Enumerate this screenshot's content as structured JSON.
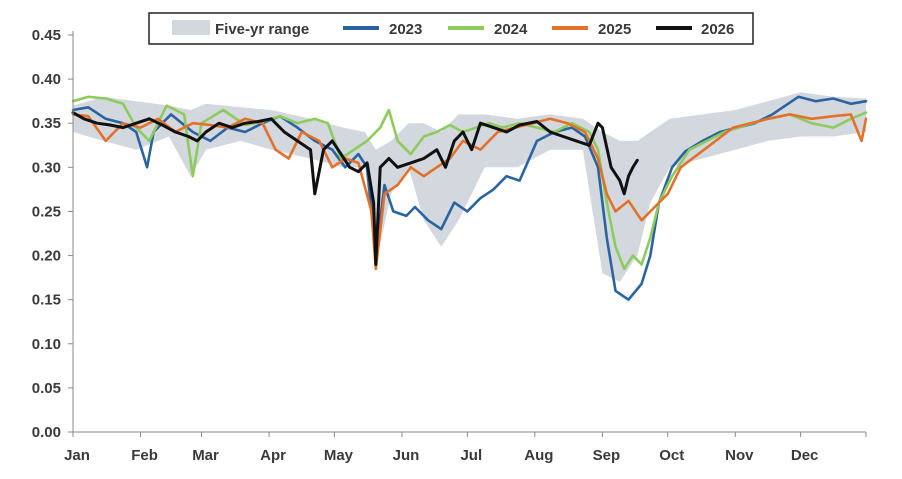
{
  "chart_data": {
    "type": "line",
    "title": "",
    "xlabel": "",
    "ylabel": "",
    "ylim": [
      0,
      0.45
    ],
    "yticks": [
      "0.00",
      "0.05",
      "0.10",
      "0.15",
      "0.20",
      "0.25",
      "0.30",
      "0.35",
      "0.40",
      "0.45"
    ],
    "x_tick_labels": [
      "Jan",
      "Feb",
      "Mar",
      "Apr",
      "May",
      "Jun",
      "Jul",
      "Aug",
      "Sep",
      "Oct",
      "Nov",
      "Dec"
    ],
    "grid": "none",
    "legend_position": "top",
    "range": {
      "name": "Five-yr range",
      "color": "#d3d7de",
      "points": [
        {
          "day": 1,
          "low": 0.34,
          "high": 0.37
        },
        {
          "day": 15,
          "low": 0.33,
          "high": 0.38
        },
        {
          "day": 30,
          "low": 0.32,
          "high": 0.375
        },
        {
          "day": 45,
          "low": 0.335,
          "high": 0.37
        },
        {
          "day": 55,
          "low": 0.29,
          "high": 0.365
        },
        {
          "day": 62,
          "low": 0.32,
          "high": 0.372
        },
        {
          "day": 78,
          "low": 0.33,
          "high": 0.368
        },
        {
          "day": 92,
          "low": 0.32,
          "high": 0.365
        },
        {
          "day": 110,
          "low": 0.31,
          "high": 0.355
        },
        {
          "day": 125,
          "low": 0.3,
          "high": 0.345
        },
        {
          "day": 135,
          "low": 0.3,
          "high": 0.34
        },
        {
          "day": 140,
          "low": 0.19,
          "high": 0.32
        },
        {
          "day": 147,
          "low": 0.27,
          "high": 0.33
        },
        {
          "day": 155,
          "low": 0.3,
          "high": 0.35
        },
        {
          "day": 162,
          "low": 0.24,
          "high": 0.35
        },
        {
          "day": 170,
          "low": 0.21,
          "high": 0.34
        },
        {
          "day": 178,
          "low": 0.24,
          "high": 0.36
        },
        {
          "day": 190,
          "low": 0.3,
          "high": 0.36
        },
        {
          "day": 205,
          "low": 0.3,
          "high": 0.355
        },
        {
          "day": 220,
          "low": 0.32,
          "high": 0.36
        },
        {
          "day": 235,
          "low": 0.32,
          "high": 0.355
        },
        {
          "day": 244,
          "low": 0.18,
          "high": 0.34
        },
        {
          "day": 252,
          "low": 0.17,
          "high": 0.33
        },
        {
          "day": 260,
          "low": 0.2,
          "high": 0.33
        },
        {
          "day": 266,
          "low": 0.26,
          "high": 0.34
        },
        {
          "day": 275,
          "low": 0.3,
          "high": 0.355
        },
        {
          "day": 290,
          "low": 0.31,
          "high": 0.36
        },
        {
          "day": 305,
          "low": 0.32,
          "high": 0.365
        },
        {
          "day": 320,
          "low": 0.33,
          "high": 0.375
        },
        {
          "day": 335,
          "low": 0.335,
          "high": 0.385
        },
        {
          "day": 350,
          "low": 0.335,
          "high": 0.38
        },
        {
          "day": 365,
          "low": 0.34,
          "high": 0.378
        }
      ]
    },
    "series": [
      {
        "name": "2023",
        "color": "#2a64a0",
        "points": [
          [
            1,
            0.365
          ],
          [
            8,
            0.368
          ],
          [
            16,
            0.355
          ],
          [
            24,
            0.35
          ],
          [
            30,
            0.34
          ],
          [
            35,
            0.3
          ],
          [
            38,
            0.34
          ],
          [
            46,
            0.36
          ],
          [
            56,
            0.34
          ],
          [
            64,
            0.33
          ],
          [
            72,
            0.345
          ],
          [
            80,
            0.34
          ],
          [
            88,
            0.35
          ],
          [
            96,
            0.358
          ],
          [
            104,
            0.345
          ],
          [
            112,
            0.33
          ],
          [
            120,
            0.32
          ],
          [
            126,
            0.3
          ],
          [
            132,
            0.315
          ],
          [
            136,
            0.3
          ],
          [
            140,
            0.2
          ],
          [
            144,
            0.28
          ],
          [
            148,
            0.25
          ],
          [
            154,
            0.245
          ],
          [
            158,
            0.255
          ],
          [
            164,
            0.24
          ],
          [
            170,
            0.23
          ],
          [
            176,
            0.26
          ],
          [
            182,
            0.25
          ],
          [
            188,
            0.265
          ],
          [
            194,
            0.275
          ],
          [
            200,
            0.29
          ],
          [
            206,
            0.285
          ],
          [
            214,
            0.33
          ],
          [
            222,
            0.34
          ],
          [
            230,
            0.345
          ],
          [
            236,
            0.335
          ],
          [
            242,
            0.3
          ],
          [
            246,
            0.22
          ],
          [
            250,
            0.16
          ],
          [
            256,
            0.15
          ],
          [
            262,
            0.168
          ],
          [
            266,
            0.2
          ],
          [
            270,
            0.26
          ],
          [
            276,
            0.3
          ],
          [
            282,
            0.318
          ],
          [
            290,
            0.33
          ],
          [
            298,
            0.34
          ],
          [
            306,
            0.345
          ],
          [
            314,
            0.35
          ],
          [
            322,
            0.36
          ],
          [
            328,
            0.37
          ],
          [
            334,
            0.38
          ],
          [
            342,
            0.375
          ],
          [
            350,
            0.378
          ],
          [
            358,
            0.372
          ],
          [
            365,
            0.375
          ]
        ]
      },
      {
        "name": "2024",
        "color": "#8dcb5c",
        "points": [
          [
            1,
            0.375
          ],
          [
            8,
            0.38
          ],
          [
            16,
            0.378
          ],
          [
            24,
            0.372
          ],
          [
            30,
            0.345
          ],
          [
            36,
            0.33
          ],
          [
            44,
            0.37
          ],
          [
            52,
            0.36
          ],
          [
            56,
            0.29
          ],
          [
            60,
            0.35
          ],
          [
            70,
            0.365
          ],
          [
            80,
            0.348
          ],
          [
            88,
            0.352
          ],
          [
            96,
            0.358
          ],
          [
            104,
            0.35
          ],
          [
            112,
            0.355
          ],
          [
            118,
            0.35
          ],
          [
            124,
            0.31
          ],
          [
            130,
            0.32
          ],
          [
            136,
            0.33
          ],
          [
            142,
            0.345
          ],
          [
            146,
            0.365
          ],
          [
            150,
            0.33
          ],
          [
            156,
            0.315
          ],
          [
            162,
            0.335
          ],
          [
            168,
            0.34
          ],
          [
            174,
            0.348
          ],
          [
            180,
            0.34
          ],
          [
            186,
            0.345
          ],
          [
            192,
            0.35
          ],
          [
            198,
            0.345
          ],
          [
            206,
            0.35
          ],
          [
            214,
            0.345
          ],
          [
            222,
            0.34
          ],
          [
            230,
            0.35
          ],
          [
            238,
            0.34
          ],
          [
            242,
            0.32
          ],
          [
            246,
            0.26
          ],
          [
            250,
            0.21
          ],
          [
            254,
            0.185
          ],
          [
            258,
            0.2
          ],
          [
            262,
            0.19
          ],
          [
            266,
            0.22
          ],
          [
            270,
            0.26
          ],
          [
            276,
            0.29
          ],
          [
            284,
            0.32
          ],
          [
            292,
            0.33
          ],
          [
            300,
            0.34
          ],
          [
            310,
            0.348
          ],
          [
            320,
            0.355
          ],
          [
            330,
            0.36
          ],
          [
            340,
            0.35
          ],
          [
            350,
            0.345
          ],
          [
            358,
            0.355
          ],
          [
            365,
            0.362
          ]
        ]
      },
      {
        "name": "2025",
        "color": "#e2712a",
        "points": [
          [
            1,
            0.36
          ],
          [
            8,
            0.358
          ],
          [
            16,
            0.33
          ],
          [
            24,
            0.35
          ],
          [
            32,
            0.345
          ],
          [
            40,
            0.355
          ],
          [
            48,
            0.34
          ],
          [
            56,
            0.35
          ],
          [
            64,
            0.348
          ],
          [
            72,
            0.345
          ],
          [
            80,
            0.355
          ],
          [
            88,
            0.35
          ],
          [
            94,
            0.32
          ],
          [
            100,
            0.31
          ],
          [
            106,
            0.34
          ],
          [
            114,
            0.33
          ],
          [
            120,
            0.3
          ],
          [
            126,
            0.31
          ],
          [
            132,
            0.305
          ],
          [
            138,
            0.25
          ],
          [
            140,
            0.185
          ],
          [
            144,
            0.27
          ],
          [
            150,
            0.28
          ],
          [
            156,
            0.3
          ],
          [
            162,
            0.29
          ],
          [
            168,
            0.3
          ],
          [
            174,
            0.31
          ],
          [
            180,
            0.33
          ],
          [
            188,
            0.32
          ],
          [
            196,
            0.34
          ],
          [
            204,
            0.345
          ],
          [
            212,
            0.35
          ],
          [
            220,
            0.355
          ],
          [
            228,
            0.35
          ],
          [
            236,
            0.34
          ],
          [
            242,
            0.31
          ],
          [
            246,
            0.27
          ],
          [
            250,
            0.25
          ],
          [
            256,
            0.262
          ],
          [
            262,
            0.24
          ],
          [
            268,
            0.255
          ],
          [
            274,
            0.27
          ],
          [
            280,
            0.3
          ],
          [
            288,
            0.315
          ],
          [
            296,
            0.33
          ],
          [
            304,
            0.345
          ],
          [
            312,
            0.35
          ],
          [
            320,
            0.355
          ],
          [
            330,
            0.36
          ],
          [
            340,
            0.355
          ],
          [
            350,
            0.358
          ],
          [
            358,
            0.36
          ],
          [
            363,
            0.33
          ],
          [
            365,
            0.355
          ]
        ]
      },
      {
        "name": "2026",
        "color": "#111111",
        "points": [
          [
            1,
            0.362
          ],
          [
            6,
            0.355
          ],
          [
            12,
            0.35
          ],
          [
            18,
            0.348
          ],
          [
            24,
            0.345
          ],
          [
            30,
            0.35
          ],
          [
            36,
            0.355
          ],
          [
            42,
            0.348
          ],
          [
            48,
            0.34
          ],
          [
            54,
            0.335
          ],
          [
            58,
            0.33
          ],
          [
            62,
            0.34
          ],
          [
            68,
            0.35
          ],
          [
            74,
            0.345
          ],
          [
            80,
            0.35
          ],
          [
            86,
            0.352
          ],
          [
            92,
            0.355
          ],
          [
            98,
            0.34
          ],
          [
            104,
            0.33
          ],
          [
            110,
            0.32
          ],
          [
            112,
            0.27
          ],
          [
            116,
            0.32
          ],
          [
            120,
            0.33
          ],
          [
            124,
            0.315
          ],
          [
            128,
            0.3
          ],
          [
            132,
            0.295
          ],
          [
            136,
            0.305
          ],
          [
            139,
            0.26
          ],
          [
            140,
            0.19
          ],
          [
            142,
            0.3
          ],
          [
            146,
            0.31
          ],
          [
            150,
            0.3
          ],
          [
            156,
            0.305
          ],
          [
            162,
            0.31
          ],
          [
            168,
            0.32
          ],
          [
            172,
            0.3
          ],
          [
            176,
            0.33
          ],
          [
            180,
            0.34
          ],
          [
            184,
            0.32
          ],
          [
            188,
            0.35
          ],
          [
            194,
            0.345
          ],
          [
            200,
            0.34
          ],
          [
            206,
            0.348
          ],
          [
            214,
            0.352
          ],
          [
            220,
            0.34
          ],
          [
            226,
            0.335
          ],
          [
            232,
            0.33
          ],
          [
            238,
            0.325
          ],
          [
            242,
            0.35
          ],
          [
            244,
            0.345
          ],
          [
            248,
            0.3
          ],
          [
            252,
            0.285
          ],
          [
            254,
            0.27
          ],
          [
            256,
            0.29
          ],
          [
            258,
            0.3
          ],
          [
            260,
            0.308
          ]
        ]
      }
    ]
  }
}
